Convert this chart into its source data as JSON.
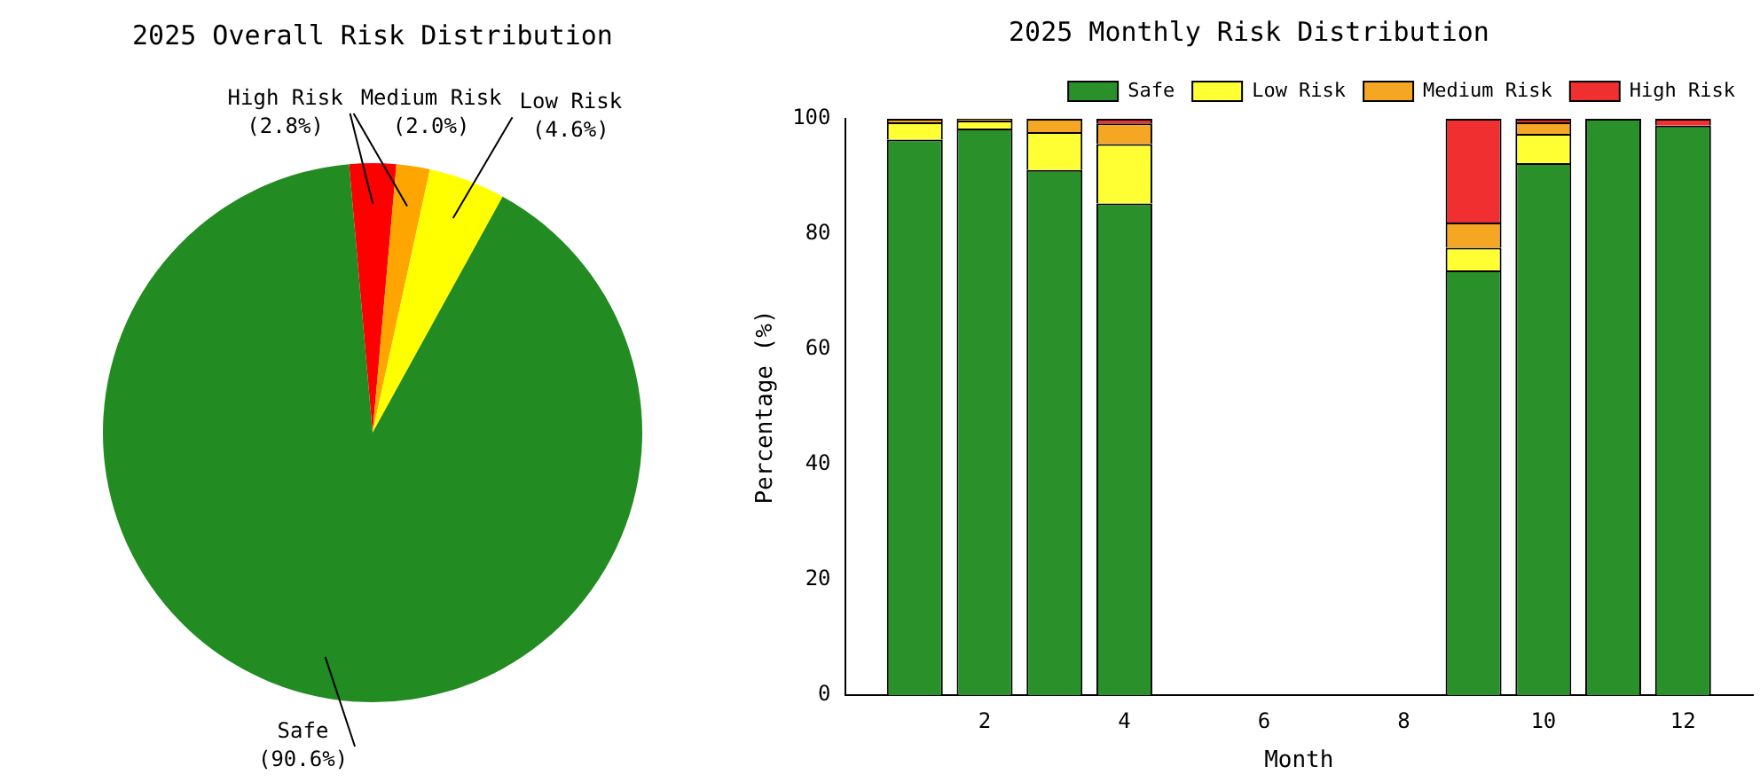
{
  "chart_data": [
    {
      "type": "pie",
      "title": "2025 Overall Risk Distribution",
      "categories": [
        "High Risk",
        "Medium Risk",
        "Low Risk",
        "Safe"
      ],
      "values": [
        2.8,
        2.0,
        4.6,
        90.6
      ],
      "colors": [
        "#ff0000",
        "#ffa500",
        "#ffff00",
        "#228b22"
      ],
      "value_labels": [
        "(2.8%)",
        "(2.0%)",
        "(4.6%)",
        "(90.6%)"
      ]
    },
    {
      "type": "bar",
      "title": "2025 Monthly Risk Distribution",
      "xlabel": "Month",
      "ylabel": "Percentage (%)",
      "x": [
        1,
        2,
        3,
        4,
        9,
        10,
        11,
        12
      ],
      "stacked": true,
      "series": [
        {
          "name": "Safe",
          "color": "#2a912a",
          "values": [
            96.4,
            98.3,
            91.1,
            85.3,
            73.7,
            92.3,
            100,
            98.8
          ]
        },
        {
          "name": "Low Risk",
          "color": "#ffff33",
          "values": [
            3.0,
            1.4,
            6.6,
            10.3,
            3.9,
            5.1,
            0,
            0
          ]
        },
        {
          "name": "Medium Risk",
          "color": "#f5a623",
          "values": [
            0.6,
            0.3,
            2.3,
            3.6,
            4.4,
            2.0,
            0,
            0
          ]
        },
        {
          "name": "High Risk",
          "color": "#f03030",
          "values": [
            0,
            0,
            0,
            0.8,
            18.0,
            0.6,
            0,
            1.2
          ]
        }
      ],
      "xlim": [
        0,
        13
      ],
      "xticks": [
        2,
        4,
        6,
        8,
        10,
        12
      ],
      "ylim": [
        0,
        100
      ],
      "yticks": [
        0,
        20,
        40,
        60,
        80,
        100
      ],
      "grid": false,
      "legend": "top right"
    }
  ]
}
